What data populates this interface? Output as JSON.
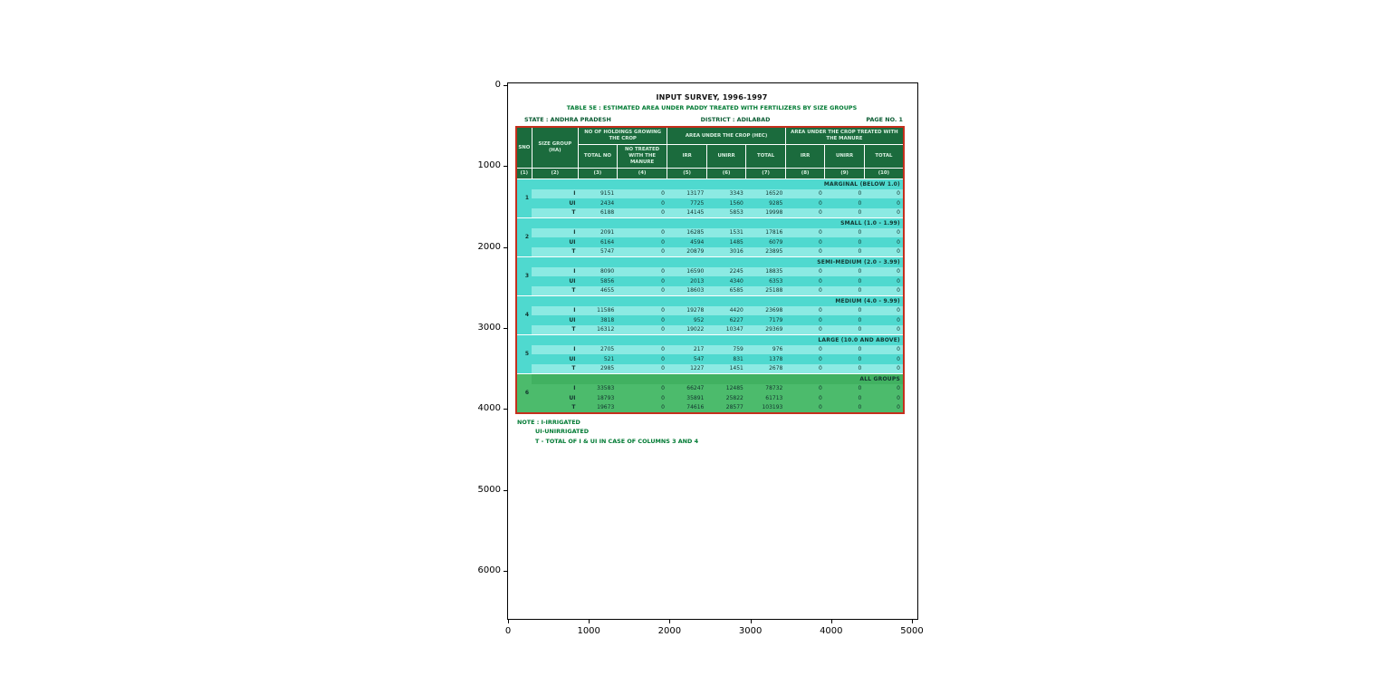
{
  "figure": {
    "x_ticks": [
      "0",
      "1000",
      "2000",
      "3000",
      "4000",
      "5000"
    ],
    "y_ticks": [
      "0",
      "1000",
      "2000",
      "3000",
      "4000",
      "5000",
      "6000"
    ]
  },
  "document": {
    "title": "INPUT SURVEY, 1996-1997",
    "subtitle": "TABLE 5E : ESTIMATED AREA UNDER PADDY TREATED WITH FERTILIZERS BY SIZE GROUPS",
    "state": "STATE : ANDHRA PRADESH",
    "district": "DISTRICT : ADILABAD",
    "page": "PAGE NO. 1",
    "colors": {
      "header_green": "#1b6b3d",
      "row_teal": "#4fd9cf",
      "row_teal_light": "#8ceae3",
      "all_groups_green": "#4cbb6c",
      "table_border_red": "#c52f1d",
      "heading_green": "#007a33"
    },
    "table": {
      "header": {
        "sno": "SNO",
        "size_group": "SIZE GROUP (HA)",
        "holdings_group": "NO OF HOLDINGS GROWING THE CROP",
        "area_group": "AREA UNDER THE CROP (HEC)",
        "treated_group": "AREA UNDER THE CROP TREATED WITH THE MANURE",
        "sub": [
          "TOTAL NO",
          "NO TREATED WITH THE MANURE",
          "IRR",
          "UNIRR",
          "TOTAL",
          "IRR",
          "UNIRR",
          "TOTAL"
        ],
        "col_numbers": [
          "(1)",
          "(2)",
          "(3)",
          "(4)",
          "(5)",
          "(6)",
          "(7)",
          "(8)",
          "(9)",
          "(10)"
        ]
      },
      "groups": [
        {
          "sno": "1",
          "name": "MARGINAL (BELOW 1.0)",
          "all": false,
          "rows": [
            {
              "label": "I",
              "values": [
                "9151",
                "0",
                "13177",
                "3343",
                "16520",
                "0",
                "0",
                "0"
              ]
            },
            {
              "label": "UI",
              "values": [
                "2434",
                "0",
                "7725",
                "1560",
                "9285",
                "0",
                "0",
                "0"
              ]
            },
            {
              "label": "T",
              "values": [
                "6188",
                "0",
                "14145",
                "5853",
                "19998",
                "0",
                "0",
                "0"
              ]
            }
          ]
        },
        {
          "sno": "2",
          "name": "SMALL (1.0 - 1.99)",
          "all": false,
          "rows": [
            {
              "label": "I",
              "values": [
                "2091",
                "0",
                "16285",
                "1531",
                "17816",
                "0",
                "0",
                "0"
              ]
            },
            {
              "label": "UI",
              "values": [
                "6164",
                "0",
                "4594",
                "1485",
                "6079",
                "0",
                "0",
                "0"
              ]
            },
            {
              "label": "T",
              "values": [
                "5747",
                "0",
                "20879",
                "3016",
                "23895",
                "0",
                "0",
                "0"
              ]
            }
          ]
        },
        {
          "sno": "3",
          "name": "SEMI-MEDIUM (2.0 - 3.99)",
          "all": false,
          "rows": [
            {
              "label": "I",
              "values": [
                "8090",
                "0",
                "16590",
                "2245",
                "18835",
                "0",
                "0",
                "0"
              ]
            },
            {
              "label": "UI",
              "values": [
                "5856",
                "0",
                "2013",
                "4340",
                "6353",
                "0",
                "0",
                "0"
              ]
            },
            {
              "label": "T",
              "values": [
                "4655",
                "0",
                "18603",
                "6585",
                "25188",
                "0",
                "0",
                "0"
              ]
            }
          ]
        },
        {
          "sno": "4",
          "name": "MEDIUM (4.0 - 9.99)",
          "all": false,
          "rows": [
            {
              "label": "I",
              "values": [
                "11586",
                "0",
                "19278",
                "4420",
                "23698",
                "0",
                "0",
                "0"
              ]
            },
            {
              "label": "UI",
              "values": [
                "3818",
                "0",
                "952",
                "6227",
                "7179",
                "0",
                "0",
                "0"
              ]
            },
            {
              "label": "T",
              "values": [
                "16312",
                "0",
                "19022",
                "10347",
                "29369",
                "0",
                "0",
                "0"
              ]
            }
          ]
        },
        {
          "sno": "5",
          "name": "LARGE (10.0 AND ABOVE)",
          "all": false,
          "rows": [
            {
              "label": "I",
              "values": [
                "2705",
                "0",
                "217",
                "759",
                "976",
                "0",
                "0",
                "0"
              ]
            },
            {
              "label": "UI",
              "values": [
                "521",
                "0",
                "547",
                "831",
                "1378",
                "0",
                "0",
                "0"
              ]
            },
            {
              "label": "T",
              "values": [
                "2985",
                "0",
                "1227",
                "1451",
                "2678",
                "0",
                "0",
                "0"
              ]
            }
          ]
        },
        {
          "sno": "6",
          "name": "ALL GROUPS",
          "all": true,
          "rows": [
            {
              "label": "I",
              "values": [
                "33583",
                "0",
                "66247",
                "12485",
                "78732",
                "0",
                "0",
                "0"
              ]
            },
            {
              "label": "UI",
              "values": [
                "18793",
                "0",
                "35891",
                "25822",
                "61713",
                "0",
                "0",
                "0"
              ]
            },
            {
              "label": "T",
              "values": [
                "19673",
                "0",
                "74616",
                "28577",
                "103193",
                "0",
                "0",
                "0"
              ]
            }
          ]
        }
      ]
    },
    "notes": [
      "NOTE : I-IRRIGATED",
      "UI-UNIRRIGATED",
      "T - TOTAL OF I & UI IN CASE OF COLUMNS 3 AND 4"
    ]
  }
}
